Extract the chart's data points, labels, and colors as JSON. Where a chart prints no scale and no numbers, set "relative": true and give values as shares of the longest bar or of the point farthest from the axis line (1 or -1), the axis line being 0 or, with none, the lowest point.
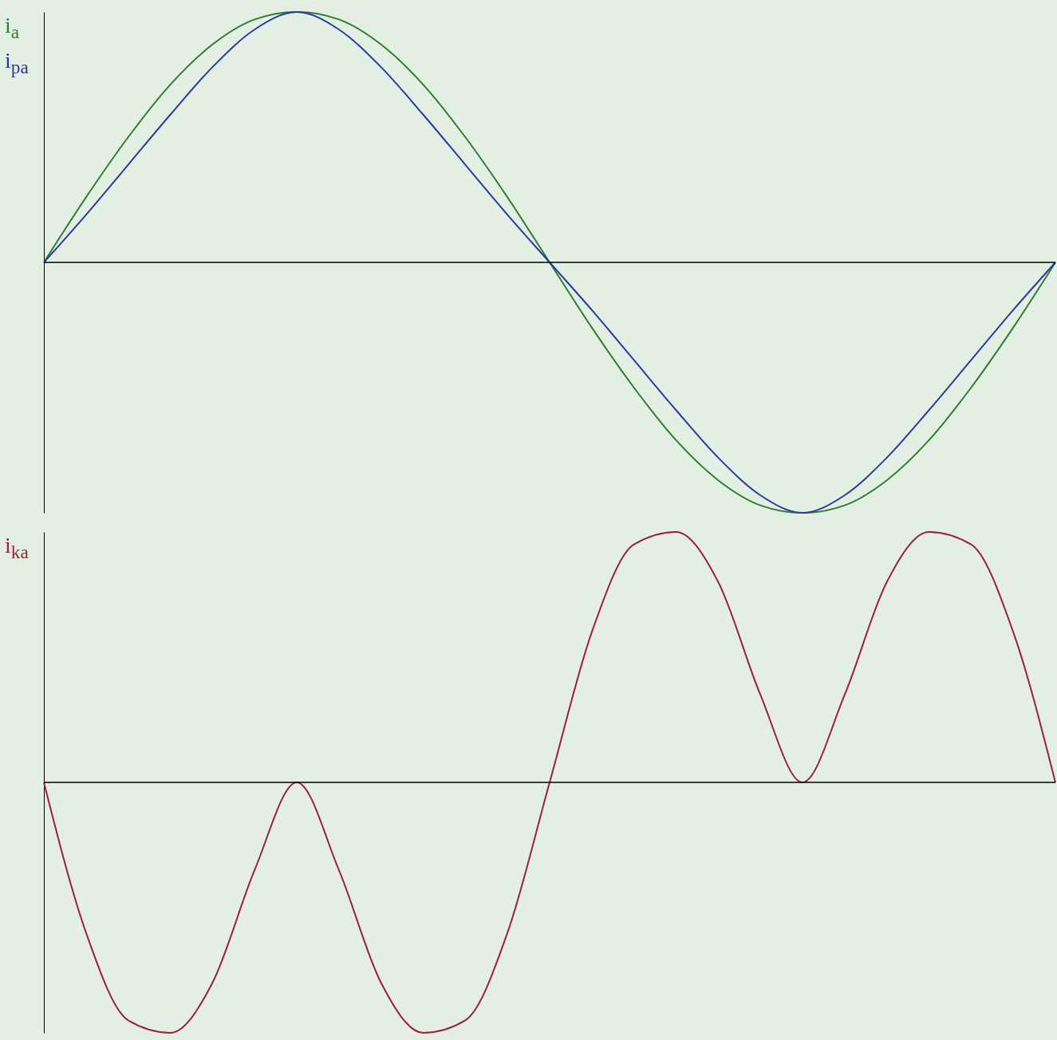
{
  "chart_data": [
    {
      "type": "line",
      "relative": true,
      "categories": [
        null,
        null,
        null,
        null,
        null,
        null,
        null,
        null,
        null,
        null,
        null,
        null,
        null,
        null,
        null,
        null,
        null,
        null,
        null,
        null,
        null,
        null,
        null,
        null,
        null
      ],
      "series": [
        {
          "name": "i$_{a}$",
          "color": "#2e7d32",
          "values": [
            0,
            0.26,
            0.5,
            0.71,
            0.87,
            0.97,
            1,
            0.97,
            0.87,
            0.71,
            0.5,
            0.26,
            0,
            -0.26,
            -0.5,
            -0.71,
            -0.87,
            -0.97,
            -1,
            -0.97,
            -0.87,
            -0.71,
            -0.5,
            -0.26,
            0
          ]
        },
        {
          "name": "i$_{pa}$",
          "color": "#2b3aa0",
          "values": [
            0,
            0.19,
            0.39,
            0.59,
            0.78,
            0.93,
            1,
            0.93,
            0.78,
            0.59,
            0.39,
            0.19,
            0,
            -0.19,
            -0.39,
            -0.59,
            -0.78,
            -0.93,
            -1,
            -0.93,
            -0.78,
            -0.59,
            -0.39,
            -0.19,
            0
          ]
        }
      ]
    },
    {
      "type": "line",
      "relative": true,
      "categories": [
        null,
        null,
        null,
        null,
        null,
        null,
        null,
        null,
        null,
        null,
        null,
        null,
        null,
        null,
        null,
        null,
        null,
        null,
        null,
        null,
        null,
        null,
        null,
        null,
        null
      ],
      "series": [
        {
          "name": "i$_{ka}$",
          "color": "#9b2335",
          "values": [
            0,
            -0.6,
            -0.95,
            -1,
            -0.8,
            -0.35,
            0,
            -0.35,
            -0.8,
            -1,
            -0.95,
            -0.6,
            0,
            0.6,
            0.95,
            1,
            0.8,
            0.35,
            0,
            0.35,
            0.8,
            1,
            0.95,
            0.6,
            0
          ]
        }
      ]
    }
  ]
}
